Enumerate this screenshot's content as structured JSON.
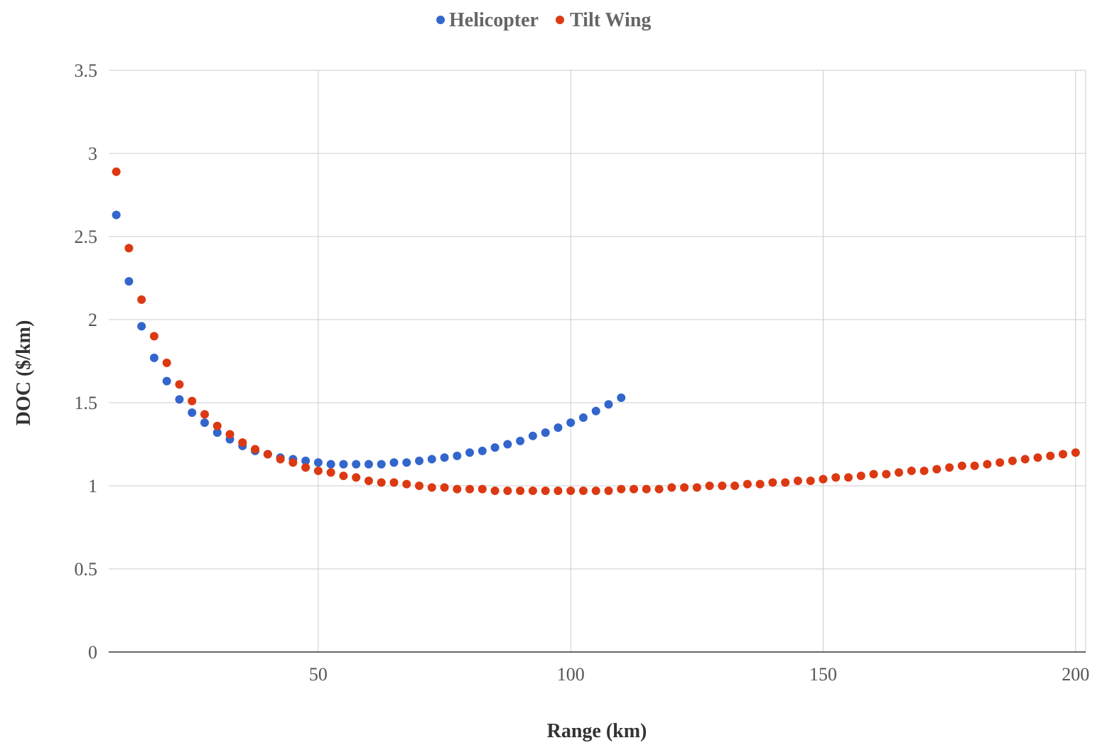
{
  "chart_data": {
    "type": "scatter",
    "title": "",
    "xlabel": "Range (km)",
    "ylabel": "DOC ($/km)",
    "xlim": [
      8.5,
      202
    ],
    "ylim": [
      0,
      3.5
    ],
    "xticks": [
      50,
      100,
      150,
      200
    ],
    "yticks": [
      0,
      0.5,
      1,
      1.5,
      2,
      2.5,
      3,
      3.5
    ],
    "grid": true,
    "legend_position": "top",
    "series": [
      {
        "name": "Helicopter",
        "color": "#3366cc",
        "points": [
          [
            10,
            2.63
          ],
          [
            12.5,
            2.23
          ],
          [
            15,
            1.96
          ],
          [
            17.5,
            1.77
          ],
          [
            20,
            1.63
          ],
          [
            22.5,
            1.52
          ],
          [
            25,
            1.44
          ],
          [
            27.5,
            1.38
          ],
          [
            30,
            1.32
          ],
          [
            32.5,
            1.28
          ],
          [
            35,
            1.24
          ],
          [
            37.5,
            1.21
          ],
          [
            40,
            1.19
          ],
          [
            42.5,
            1.17
          ],
          [
            45,
            1.16
          ],
          [
            47.5,
            1.15
          ],
          [
            50,
            1.14
          ],
          [
            52.5,
            1.13
          ],
          [
            55,
            1.13
          ],
          [
            57.5,
            1.13
          ],
          [
            60,
            1.13
          ],
          [
            62.5,
            1.13
          ],
          [
            65,
            1.14
          ],
          [
            67.5,
            1.14
          ],
          [
            70,
            1.15
          ],
          [
            72.5,
            1.16
          ],
          [
            75,
            1.17
          ],
          [
            77.5,
            1.18
          ],
          [
            80,
            1.2
          ],
          [
            82.5,
            1.21
          ],
          [
            85,
            1.23
          ],
          [
            87.5,
            1.25
          ],
          [
            90,
            1.27
          ],
          [
            92.5,
            1.3
          ],
          [
            95,
            1.32
          ],
          [
            97.5,
            1.35
          ],
          [
            100,
            1.38
          ],
          [
            102.5,
            1.41
          ],
          [
            105,
            1.45
          ],
          [
            107.5,
            1.49
          ],
          [
            110,
            1.53
          ]
        ]
      },
      {
        "name": "Tilt Wing",
        "color": "#dc3912",
        "points": [
          [
            10,
            2.89
          ],
          [
            12.5,
            2.43
          ],
          [
            15,
            2.12
          ],
          [
            17.5,
            1.9
          ],
          [
            20,
            1.74
          ],
          [
            22.5,
            1.61
          ],
          [
            25,
            1.51
          ],
          [
            27.5,
            1.43
          ],
          [
            30,
            1.36
          ],
          [
            32.5,
            1.31
          ],
          [
            35,
            1.26
          ],
          [
            37.5,
            1.22
          ],
          [
            40,
            1.19
          ],
          [
            42.5,
            1.16
          ],
          [
            45,
            1.14
          ],
          [
            47.5,
            1.11
          ],
          [
            50,
            1.09
          ],
          [
            52.5,
            1.08
          ],
          [
            55,
            1.06
          ],
          [
            57.5,
            1.05
          ],
          [
            60,
            1.03
          ],
          [
            62.5,
            1.02
          ],
          [
            65,
            1.02
          ],
          [
            67.5,
            1.01
          ],
          [
            70,
            1.0
          ],
          [
            72.5,
            0.99
          ],
          [
            75,
            0.99
          ],
          [
            77.5,
            0.98
          ],
          [
            80,
            0.98
          ],
          [
            82.5,
            0.98
          ],
          [
            85,
            0.97
          ],
          [
            87.5,
            0.97
          ],
          [
            90,
            0.97
          ],
          [
            92.5,
            0.97
          ],
          [
            95,
            0.97
          ],
          [
            97.5,
            0.97
          ],
          [
            100,
            0.97
          ],
          [
            102.5,
            0.97
          ],
          [
            105,
            0.97
          ],
          [
            107.5,
            0.97
          ],
          [
            110,
            0.98
          ],
          [
            112.5,
            0.98
          ],
          [
            115,
            0.98
          ],
          [
            117.5,
            0.98
          ],
          [
            120,
            0.99
          ],
          [
            122.5,
            0.99
          ],
          [
            125,
            0.99
          ],
          [
            127.5,
            1.0
          ],
          [
            130,
            1.0
          ],
          [
            132.5,
            1.0
          ],
          [
            135,
            1.01
          ],
          [
            137.5,
            1.01
          ],
          [
            140,
            1.02
          ],
          [
            142.5,
            1.02
          ],
          [
            145,
            1.03
          ],
          [
            147.5,
            1.03
          ],
          [
            150,
            1.04
          ],
          [
            152.5,
            1.05
          ],
          [
            155,
            1.05
          ],
          [
            157.5,
            1.06
          ],
          [
            160,
            1.07
          ],
          [
            162.5,
            1.07
          ],
          [
            165,
            1.08
          ],
          [
            167.5,
            1.09
          ],
          [
            170,
            1.09
          ],
          [
            172.5,
            1.1
          ],
          [
            175,
            1.11
          ],
          [
            177.5,
            1.12
          ],
          [
            180,
            1.12
          ],
          [
            182.5,
            1.13
          ],
          [
            185,
            1.14
          ],
          [
            187.5,
            1.15
          ],
          [
            190,
            1.16
          ],
          [
            192.5,
            1.17
          ],
          [
            195,
            1.18
          ],
          [
            197.5,
            1.19
          ],
          [
            200,
            1.2
          ]
        ]
      }
    ]
  }
}
